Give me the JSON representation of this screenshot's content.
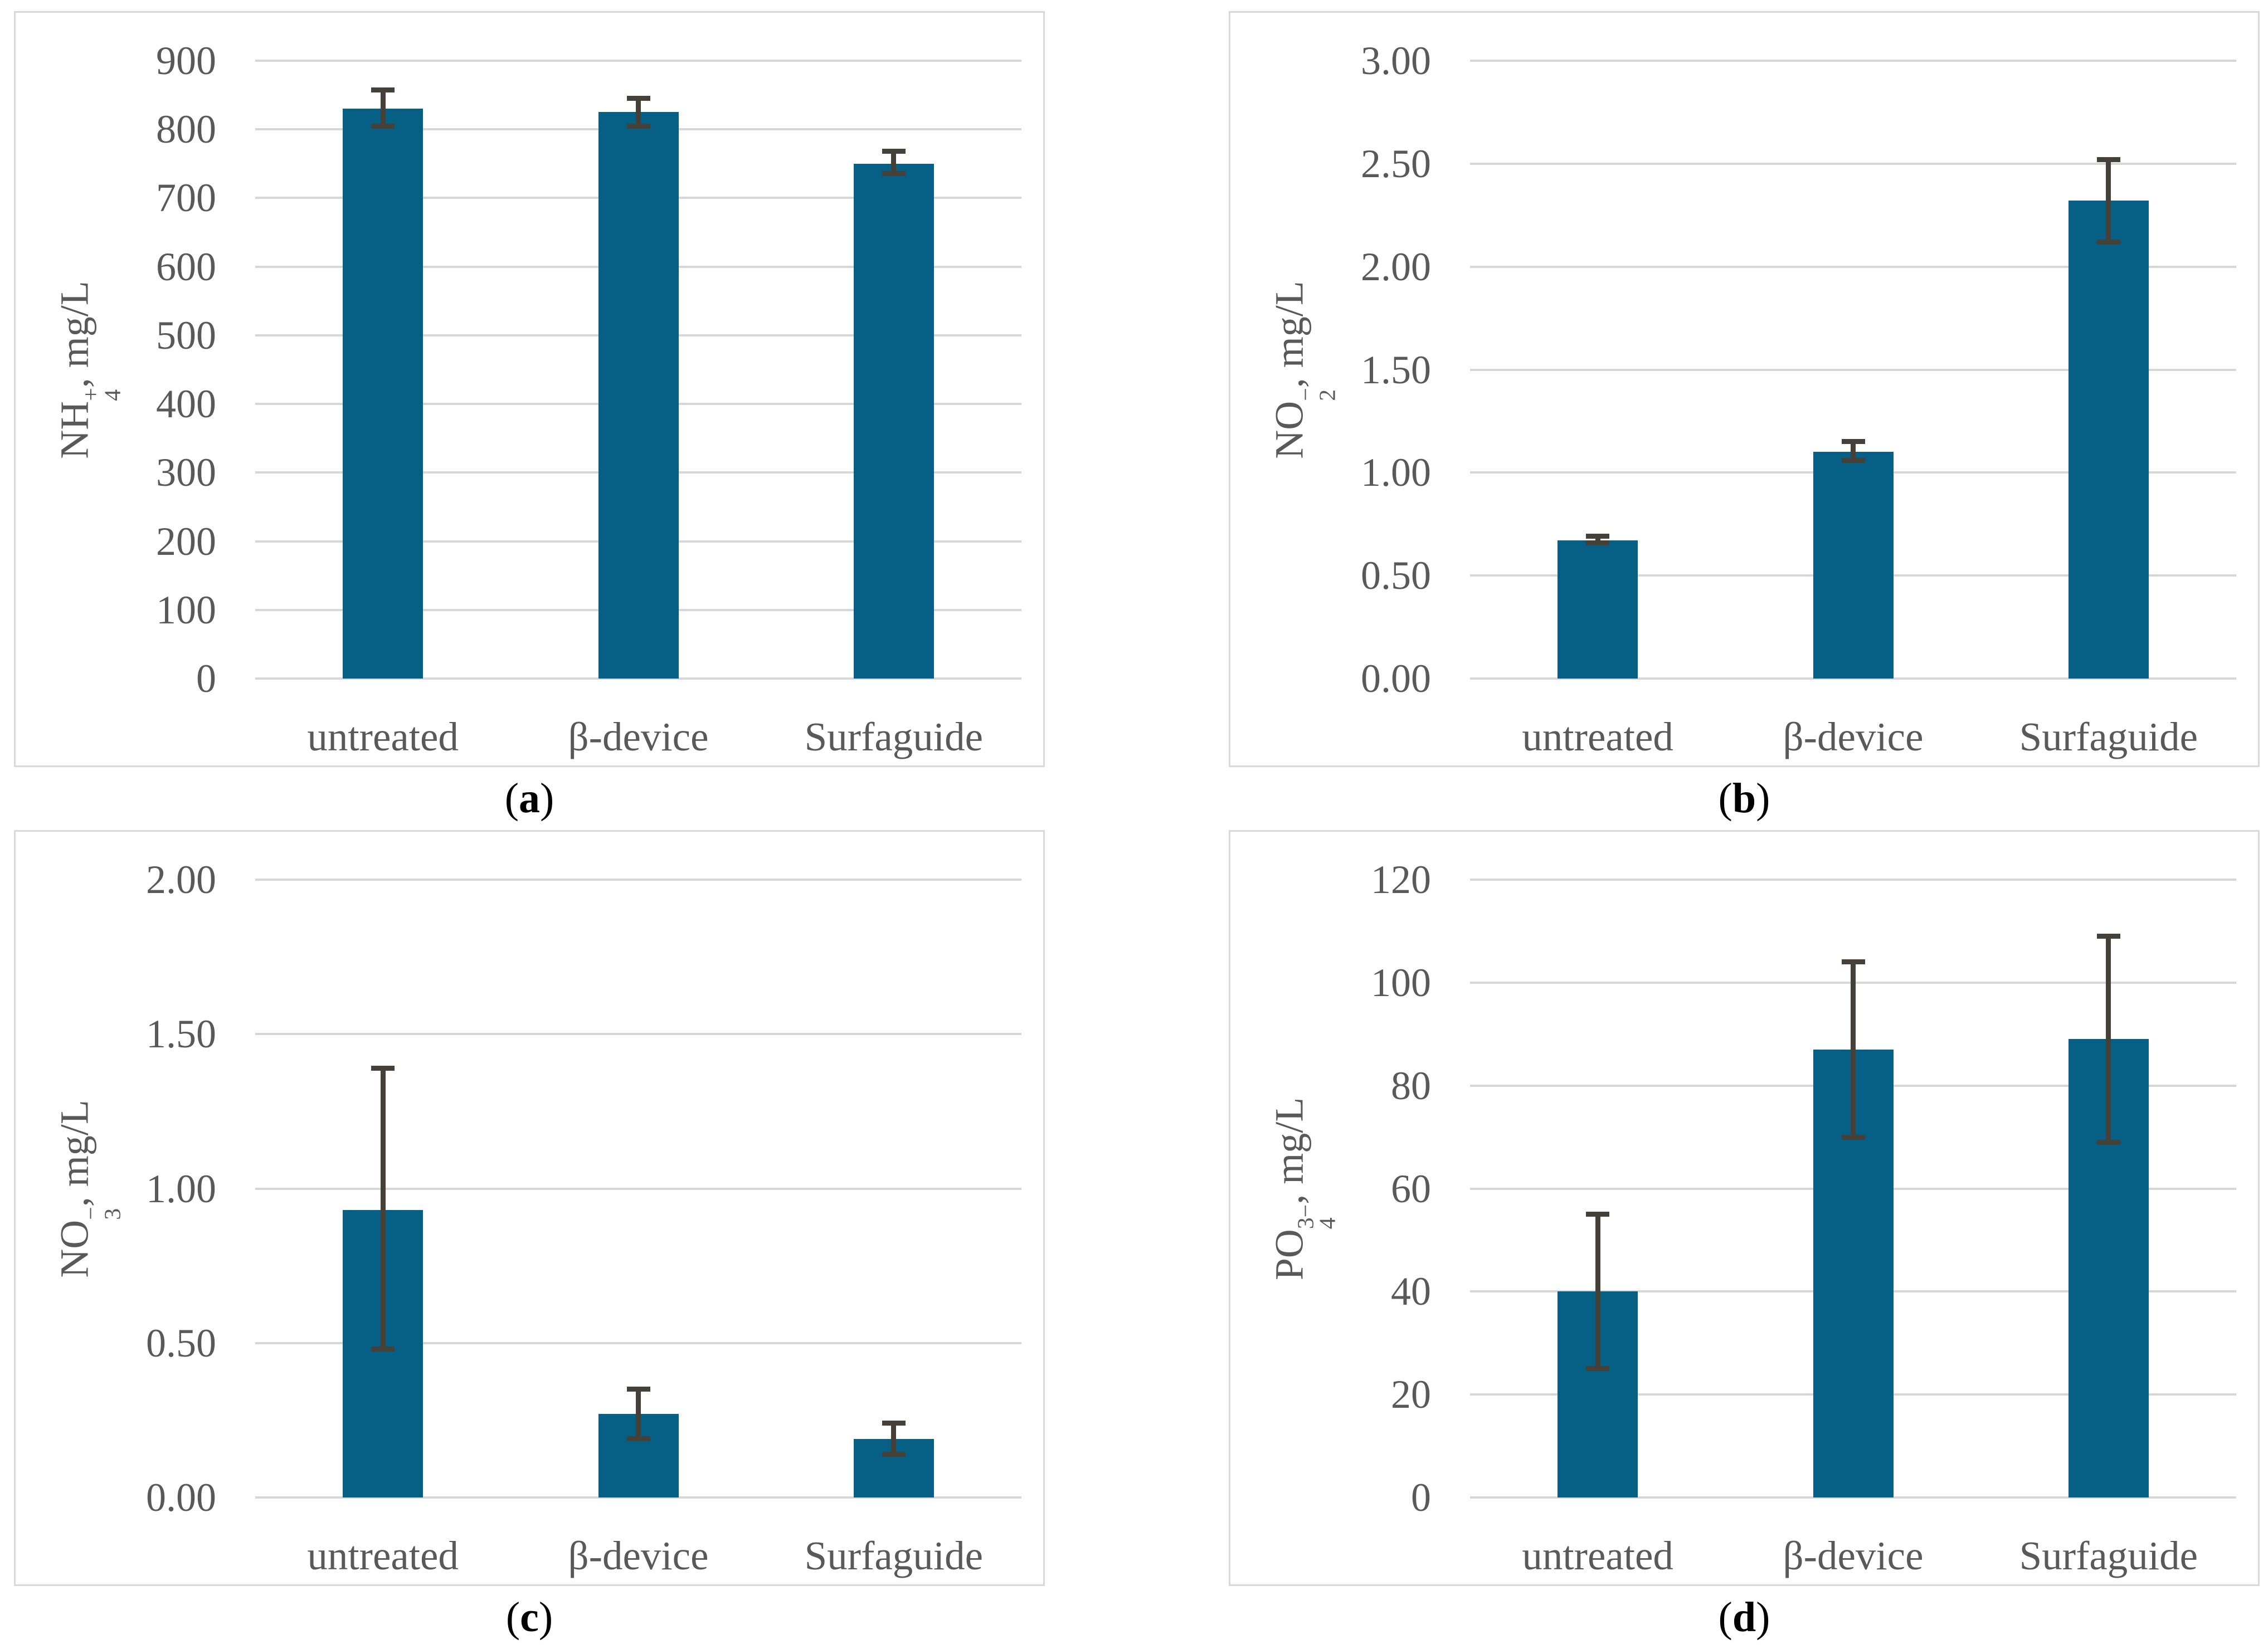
{
  "styles": {
    "bar_color": "#066086",
    "error_bar_color": "#454038",
    "gridline_color": "#d7d7d7",
    "panel_border_color": "#d9d9d9",
    "axis_text_color": "#595959",
    "caption_color": "#000000",
    "background_color": "#ffffff"
  },
  "chart_data": [
    {
      "type": "bar",
      "caption_open": "(",
      "caption_letter": "a",
      "caption_close": ")",
      "ylabel": {
        "base": "NH",
        "sup": "+",
        "sub": "4",
        "unit": ", mg/L"
      },
      "ylabel_text": "NH4+, mg/L",
      "ylim": [
        0,
        900
      ],
      "ytick_step": 100,
      "ytick_decimals": 0,
      "grid": true,
      "legend": "none",
      "categories": [
        "untreated",
        "β-device",
        "Surfaguide"
      ],
      "values": [
        830,
        825,
        750
      ],
      "error_plus": [
        27,
        20,
        18
      ],
      "error_minus": [
        25,
        20,
        14
      ]
    },
    {
      "type": "bar",
      "caption_open": "(",
      "caption_letter": "b",
      "caption_close": ")",
      "ylabel": {
        "base": "NO",
        "sup": "−",
        "sub": "2",
        "unit": ", mg/L"
      },
      "ylabel_text": "NO2-, mg/L",
      "ylim": [
        0,
        3.0
      ],
      "ytick_step": 0.5,
      "ytick_decimals": 2,
      "grid": true,
      "legend": "none",
      "categories": [
        "untreated",
        "β-device",
        "Surfaguide"
      ],
      "values": [
        0.67,
        1.1,
        2.32
      ],
      "error_plus": [
        0.02,
        0.05,
        0.2
      ],
      "error_minus": [
        0.01,
        0.04,
        0.2
      ]
    },
    {
      "type": "bar",
      "caption_open": "(",
      "caption_letter": "c",
      "caption_close": ")",
      "ylabel": {
        "base": "NO",
        "sup": "−",
        "sub": "3",
        "unit": ", mg/L"
      },
      "ylabel_text": "NO3-, mg/L",
      "ylim": [
        0,
        2.0
      ],
      "ytick_step": 0.5,
      "ytick_decimals": 2,
      "grid": true,
      "legend": "none",
      "categories": [
        "untreated",
        "β-device",
        "Surfaguide"
      ],
      "values": [
        0.93,
        0.27,
        0.19
      ],
      "error_plus": [
        0.46,
        0.08,
        0.05
      ],
      "error_minus": [
        0.45,
        0.08,
        0.05
      ]
    },
    {
      "type": "bar",
      "caption_open": "(",
      "caption_letter": "d",
      "caption_close": ")",
      "ylabel": {
        "base": "PO",
        "sup": "3−",
        "sub": "4",
        "unit": ", mg/L"
      },
      "ylabel_text": "PO43-, mg/L",
      "ylim": [
        0,
        120
      ],
      "ytick_step": 20,
      "ytick_decimals": 0,
      "grid": true,
      "legend": "none",
      "categories": [
        "untreated",
        "β-device",
        "Surfaguide"
      ],
      "values": [
        40,
        87,
        89
      ],
      "error_plus": [
        15,
        17,
        20
      ],
      "error_minus": [
        15,
        17,
        20
      ]
    }
  ]
}
